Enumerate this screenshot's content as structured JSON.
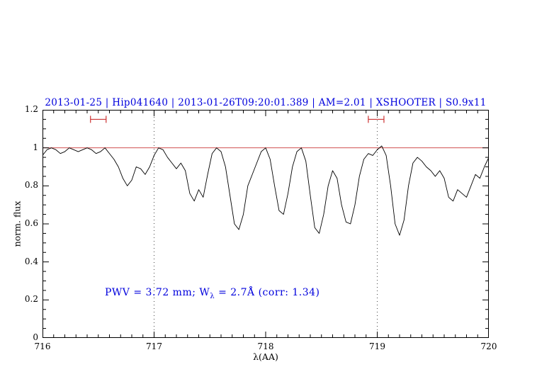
{
  "title": "2013-01-25 | Hip041640 | 2013-01-26T09:20:01.389 | AM=2.01 | XSHOOTER | S0.9x11",
  "annotation": {
    "pre": "PWV = 3.72 mm; W",
    "sub": "λ",
    "post": " = 2.7Å (corr: 1.34)",
    "full": "PWV = 3.72 mm; Wλ = 2.7Å (corr: 1.34)"
  },
  "colors": {
    "title_text": "#0000dd",
    "annotation_text": "#0000dd",
    "reference_line": "#d05050",
    "marker": "#cc3333",
    "dotted_line": "#444444",
    "frame": "#000000",
    "spectrum": "#000000"
  },
  "chart_data": {
    "type": "line",
    "title": "2013-01-25 | Hip041640 | 2013-01-26T09:20:01.389 | AM=2.01 | XSHOOTER | S0.9x11",
    "xlabel": "λ(AA)",
    "ylabel": "norm. flux",
    "xlim": [
      716,
      720
    ],
    "ylim": [
      0,
      1.2
    ],
    "grid": false,
    "legend": "none",
    "x_ticks": {
      "values": [
        716,
        717,
        718,
        719,
        720
      ],
      "labels": [
        "716",
        "717",
        "718",
        "719",
        "720"
      ],
      "minor_step": 0.1
    },
    "y_ticks": {
      "values": [
        0,
        0.2,
        0.4,
        0.6,
        0.8,
        1,
        1.2
      ],
      "labels": [
        "0",
        "0.2",
        "0.4",
        "0.6",
        "0.8",
        "1",
        "1.2"
      ],
      "minor_step": 0.05
    },
    "reference_line_y": 1.0,
    "dotted_vlines": [
      717,
      719
    ],
    "interval_markers": [
      {
        "x_center": 716.5,
        "y": 1.15,
        "half_width": 0.07
      },
      {
        "x_center": 718.99,
        "y": 1.15,
        "half_width": 0.07
      }
    ],
    "annotation": "PWV = 3.72 mm; Wλ = 2.7Å (corr: 1.34)",
    "series": [
      {
        "name": "telluric absorption spectrum",
        "color": "#000000",
        "x_start": 716.0,
        "x_step": 0.04,
        "y": [
          0.96,
          0.99,
          1.0,
          0.99,
          0.97,
          0.98,
          1.0,
          0.99,
          0.98,
          0.99,
          1.0,
          0.99,
          0.97,
          0.98,
          1.0,
          0.97,
          0.94,
          0.9,
          0.84,
          0.8,
          0.83,
          0.9,
          0.89,
          0.86,
          0.9,
          0.96,
          1.0,
          0.99,
          0.95,
          0.92,
          0.89,
          0.92,
          0.88,
          0.76,
          0.72,
          0.78,
          0.74,
          0.86,
          0.97,
          1.0,
          0.98,
          0.9,
          0.75,
          0.6,
          0.57,
          0.65,
          0.8,
          0.86,
          0.92,
          0.98,
          1.0,
          0.94,
          0.8,
          0.67,
          0.65,
          0.76,
          0.9,
          0.98,
          1.0,
          0.93,
          0.75,
          0.58,
          0.55,
          0.65,
          0.8,
          0.88,
          0.84,
          0.7,
          0.61,
          0.6,
          0.7,
          0.85,
          0.94,
          0.97,
          0.96,
          0.99,
          1.01,
          0.96,
          0.8,
          0.6,
          0.54,
          0.62,
          0.8,
          0.92,
          0.95,
          0.93,
          0.9,
          0.88,
          0.85,
          0.88,
          0.84,
          0.74,
          0.72,
          0.78,
          0.76,
          0.74,
          0.8,
          0.86,
          0.84,
          0.9,
          0.95
        ]
      }
    ]
  }
}
